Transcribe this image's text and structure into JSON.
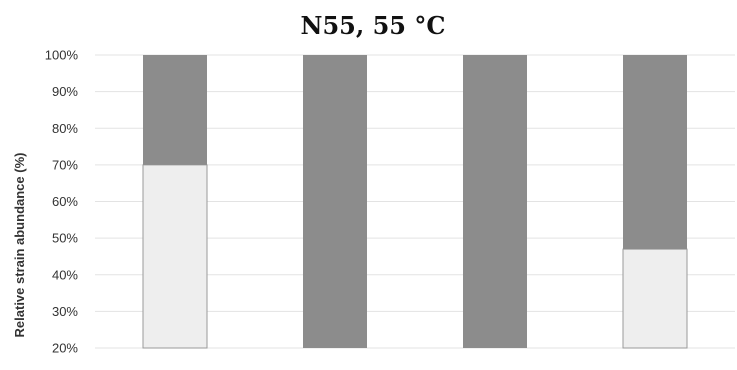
{
  "chart_data": {
    "type": "bar",
    "stacked": true,
    "title": "N55, 55 °C",
    "ylabel": "Relative strain abundance (%)",
    "xlabel": "",
    "ylim": [
      0,
      100
    ],
    "visible_y_range": [
      20,
      100
    ],
    "yticks": [
      {
        "value": 20,
        "label": "20%"
      },
      {
        "value": 30,
        "label": "30%"
      },
      {
        "value": 40,
        "label": "40%"
      },
      {
        "value": 50,
        "label": "50%"
      },
      {
        "value": 60,
        "label": "60%"
      },
      {
        "value": 70,
        "label": "70%"
      },
      {
        "value": 80,
        "label": "80%"
      },
      {
        "value": 90,
        "label": "90%"
      },
      {
        "value": 100,
        "label": "100%"
      }
    ],
    "grid": true,
    "legend": "none visible",
    "categories": [
      "",
      "",
      "",
      ""
    ],
    "series": [
      {
        "color": "#eeeeee",
        "values": [
          70,
          0,
          0,
          47
        ]
      },
      {
        "color": "#8c8c8c",
        "values": [
          30,
          100,
          100,
          53
        ]
      }
    ]
  }
}
